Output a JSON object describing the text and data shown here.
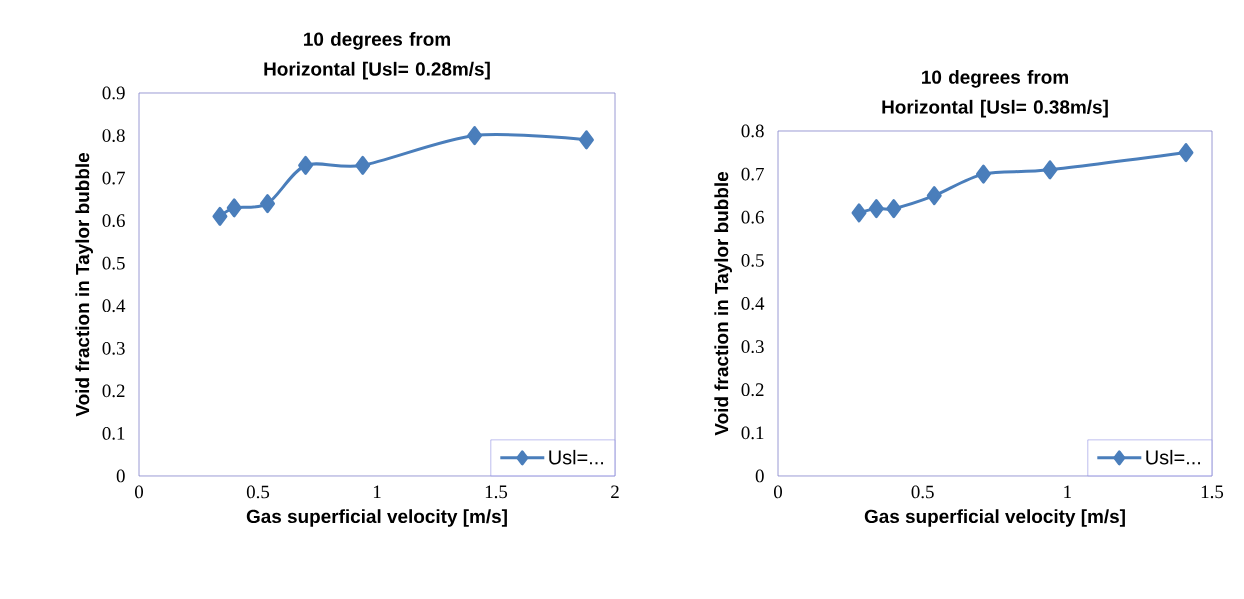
{
  "chart_data": [
    {
      "type": "line",
      "title": "10 degrees from Horizontal [Usl= 0.28m/s]",
      "xlabel": "Gas superficial velocity [m/s]",
      "ylabel": "Void  fraction in Taylor bubble",
      "x": [
        0.34,
        0.4,
        0.54,
        0.7,
        0.94,
        1.41,
        1.88
      ],
      "series": [
        {
          "name": "Usl=...",
          "color": "#4a7ebb",
          "values": [
            0.61,
            0.63,
            0.64,
            0.73,
            0.73,
            0.8,
            0.79
          ]
        }
      ],
      "xlim": [
        0,
        2
      ],
      "xticks": [
        0,
        0.5,
        1,
        1.5,
        2
      ],
      "ylim": [
        0,
        0.9
      ],
      "yticks": [
        0,
        0.1,
        0.2,
        0.3,
        0.4,
        0.5,
        0.6,
        0.7,
        0.8,
        0.9
      ],
      "legend": "bottom right",
      "marker": "diamond",
      "line_style": "solid",
      "grid": false
    },
    {
      "type": "line",
      "title": "10 degrees from Horizontal [Usl= 0.38m/s]",
      "xlabel": "Gas superficial velocity [m/s]",
      "ylabel": "Void  fraction in Taylor bubble",
      "x": [
        0.28,
        0.34,
        0.4,
        0.54,
        0.71,
        0.94,
        1.41
      ],
      "series": [
        {
          "name": "Usl=...",
          "color": "#4a7ebb",
          "values": [
            0.61,
            0.62,
            0.62,
            0.65,
            0.7,
            0.71,
            0.75
          ]
        }
      ],
      "xlim": [
        0,
        1.5
      ],
      "xticks": [
        0,
        0.5,
        1,
        1.5
      ],
      "ylim": [
        0,
        0.8
      ],
      "yticks": [
        0,
        0.1,
        0.2,
        0.3,
        0.4,
        0.5,
        0.6,
        0.7,
        0.8
      ],
      "legend": "bottom right",
      "marker": "diamond",
      "line_style": "solid",
      "grid": false
    }
  ]
}
